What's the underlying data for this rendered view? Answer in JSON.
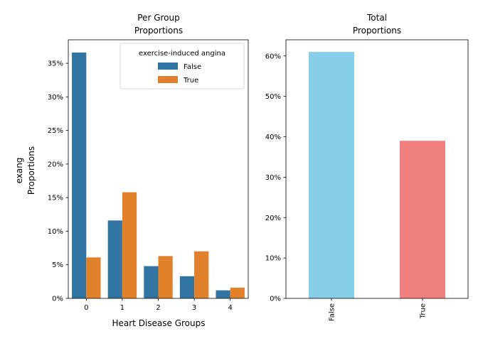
{
  "chart_data": [
    {
      "type": "bar",
      "title": [
        "Per Group",
        "Proportions"
      ],
      "xlabel": "Heart Disease Groups",
      "ylabel": [
        "exang",
        "Proportions"
      ],
      "categories": [
        "0",
        "1",
        "2",
        "3",
        "4"
      ],
      "series": [
        {
          "name": "False",
          "color": "#3274a1",
          "values": [
            0.366,
            0.116,
            0.048,
            0.033,
            0.012
          ]
        },
        {
          "name": "True",
          "color": "#e1812c",
          "values": [
            0.061,
            0.158,
            0.063,
            0.07,
            0.016
          ]
        }
      ],
      "ylim": [
        0,
        0.385
      ],
      "yticks": [
        0,
        0.05,
        0.1,
        0.15,
        0.2,
        0.25,
        0.3,
        0.35
      ],
      "yticklabels": [
        "0%",
        "5%",
        "10%",
        "15%",
        "20%",
        "25%",
        "30%",
        "35%"
      ],
      "legend": {
        "title": "exercise-induced angina",
        "placement": "top-right",
        "entries": [
          "False",
          "True"
        ]
      },
      "grid": false
    },
    {
      "type": "bar",
      "title": [
        "Total",
        "Proportions"
      ],
      "categories": [
        "False",
        "True"
      ],
      "values": [
        0.61,
        0.39
      ],
      "colors": [
        "#87ceeb",
        "#f08080"
      ],
      "ylim": [
        0,
        0.64
      ],
      "yticks": [
        0,
        0.1,
        0.2,
        0.3,
        0.4,
        0.5,
        0.6
      ],
      "yticklabels": [
        "0%",
        "10%",
        "20%",
        "30%",
        "40%",
        "50%",
        "60%"
      ],
      "xtick_rotation": 90,
      "grid": false
    }
  ]
}
